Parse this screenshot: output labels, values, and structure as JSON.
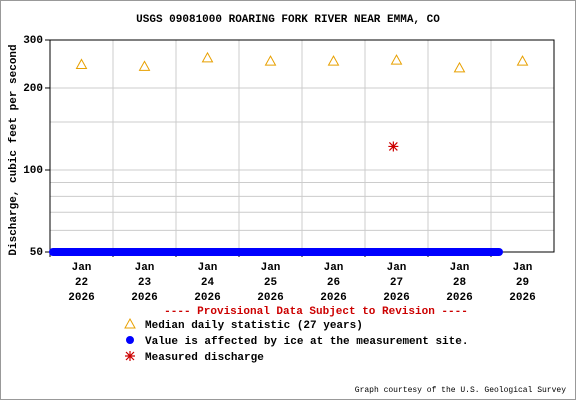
{
  "chart_data": {
    "type": "line",
    "title": "USGS 09081000 ROARING FORK RIVER NEAR EMMA, CO",
    "y_label": "Discharge, cubic feet per second",
    "log_y": true,
    "grid": true,
    "ylim": [
      50,
      300
    ],
    "yticks": [
      50,
      100,
      200,
      300
    ],
    "y_minor_grid": [
      60,
      70,
      80,
      90,
      150
    ],
    "xlim": [
      "2026-01-22",
      "2026-01-30"
    ],
    "xticks": [
      {
        "value": "2026-01-22",
        "label": [
          "Jan",
          "22",
          "2026"
        ]
      },
      {
        "value": "2026-01-23",
        "label": [
          "Jan",
          "23",
          "2026"
        ]
      },
      {
        "value": "2026-01-24",
        "label": [
          "Jan",
          "24",
          "2026"
        ]
      },
      {
        "value": "2026-01-25",
        "label": [
          "Jan",
          "25",
          "2026"
        ]
      },
      {
        "value": "2026-01-26",
        "label": [
          "Jan",
          "26",
          "2026"
        ]
      },
      {
        "value": "2026-01-27",
        "label": [
          "Jan",
          "27",
          "2026"
        ]
      },
      {
        "value": "2026-01-28",
        "label": [
          "Jan",
          "28",
          "2026"
        ]
      },
      {
        "value": "2026-01-29",
        "label": [
          "Jan",
          "29",
          "2026"
        ]
      }
    ],
    "legend_title": "---- Provisional Data Subject to Revision ----",
    "median": {
      "name": "Median daily statistic (27 years)",
      "color": "#e8a000",
      "x": [
        "2026-01-22",
        "2026-01-23",
        "2026-01-24",
        "2026-01-25",
        "2026-01-26",
        "2026-01-27",
        "2026-01-28",
        "2026-01-29"
      ],
      "values": [
        244,
        240,
        258,
        251,
        251,
        253,
        237,
        251
      ]
    },
    "ice": {
      "name": "Value is affected by ice at the measurement site.",
      "color": "#0000ff",
      "start": "2026-01-22",
      "end": "2026-01-29",
      "value": 50
    },
    "measured": {
      "name": "Measured discharge",
      "color": "#cc0000",
      "x": [
        "2026-01-27"
      ],
      "values": [
        122
      ]
    },
    "credit": "Graph courtesy of the U.S. Geological Survey"
  }
}
